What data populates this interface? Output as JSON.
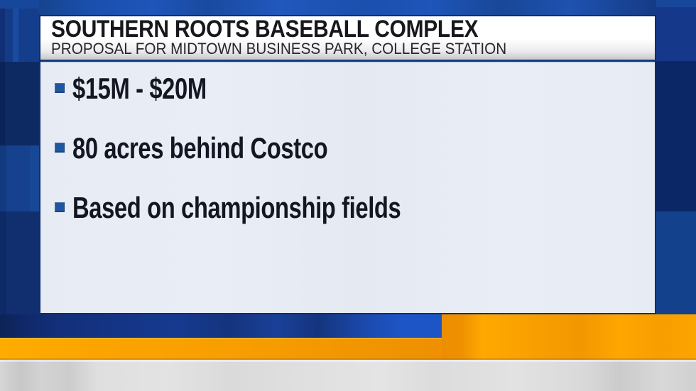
{
  "header": {
    "title": "SOUTHERN ROOTS BASEBALL COMPLEX",
    "subtitle": "PROPOSAL FOR MIDTOWN BUSINESS PARK, COLLEGE STATION"
  },
  "bullets": [
    {
      "label": "$15M - $20M"
    },
    {
      "label": "80 acres behind Costco"
    },
    {
      "label": "Based on championship fields"
    }
  ],
  "colors": {
    "accent_blue": "#1f569f",
    "bright_blue": "#1e55c6",
    "navy": "#0d2a66",
    "orange": "#f9a000",
    "panel_bg": "#e7ebf3",
    "header_bg": "#ffffff",
    "title_text": "#17171d",
    "subtitle_text": "#26262c",
    "bullet_text": "#141722",
    "gray_band": "#dcdcdc"
  }
}
